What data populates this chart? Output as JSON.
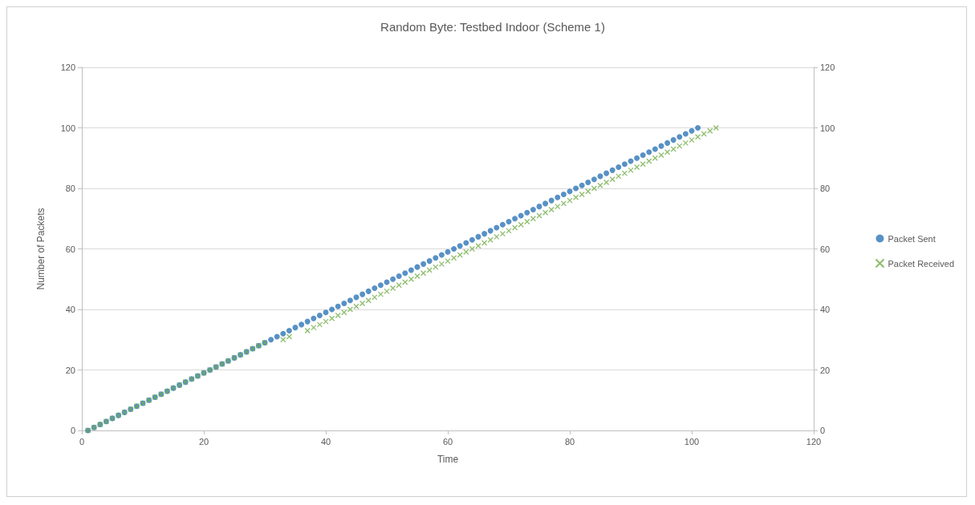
{
  "chart_data": {
    "type": "scatter",
    "title": "Random Byte: Testbed Indoor (Scheme 1)",
    "xlabel": "Time",
    "ylabel": "Number of Packets",
    "xlim": [
      0,
      120
    ],
    "xticks": [
      0,
      20,
      40,
      60,
      80,
      100,
      120
    ],
    "ylim": [
      0,
      120
    ],
    "yticks": [
      0,
      20,
      40,
      60,
      80,
      100,
      120
    ],
    "y2lim": [
      0,
      120
    ],
    "y2ticks": [
      0,
      20,
      40,
      60,
      80,
      100,
      120
    ],
    "grid": "y",
    "legend": "right",
    "series": [
      {
        "name": "Packet Sent",
        "color": "#2e75b6",
        "marker": "circle",
        "x": [
          1,
          2,
          3,
          4,
          5,
          6,
          7,
          8,
          9,
          10,
          11,
          12,
          13,
          14,
          15,
          16,
          17,
          18,
          19,
          20,
          21,
          22,
          23,
          24,
          25,
          26,
          27,
          28,
          29,
          30,
          31,
          32,
          33,
          34,
          35,
          36,
          37,
          38,
          39,
          40,
          41,
          42,
          43,
          44,
          45,
          46,
          47,
          48,
          49,
          50,
          51,
          52,
          53,
          54,
          55,
          56,
          57,
          58,
          59,
          60,
          61,
          62,
          63,
          64,
          65,
          66,
          67,
          68,
          69,
          70,
          71,
          72,
          73,
          74,
          75,
          76,
          77,
          78,
          79,
          80,
          81,
          82,
          83,
          84,
          85,
          86,
          87,
          88,
          89,
          90,
          91,
          92,
          93,
          94,
          95,
          96,
          97,
          98,
          99,
          100,
          101
        ],
        "values": [
          0,
          1,
          2,
          3,
          4,
          5,
          6,
          7,
          8,
          9,
          10,
          11,
          12,
          13,
          14,
          15,
          16,
          17,
          18,
          19,
          20,
          21,
          22,
          23,
          24,
          25,
          26,
          27,
          28,
          29,
          30,
          31,
          32,
          33,
          34,
          35,
          36,
          37,
          38,
          39,
          40,
          41,
          42,
          43,
          44,
          45,
          46,
          47,
          48,
          49,
          50,
          51,
          52,
          53,
          54,
          55,
          56,
          57,
          58,
          59,
          60,
          61,
          62,
          63,
          64,
          65,
          66,
          67,
          68,
          69,
          70,
          71,
          72,
          73,
          74,
          75,
          76,
          77,
          78,
          79,
          80,
          81,
          82,
          83,
          84,
          85,
          86,
          87,
          88,
          89,
          90,
          91,
          92,
          93,
          94,
          95,
          96,
          97,
          98,
          99,
          100
        ]
      },
      {
        "name": "Packet Received",
        "color": "#70ad47",
        "marker": "cross",
        "x": [
          1,
          2,
          3,
          4,
          5,
          6,
          7,
          8,
          9,
          10,
          11,
          12,
          13,
          14,
          15,
          16,
          17,
          18,
          19,
          20,
          21,
          22,
          23,
          24,
          25,
          26,
          27,
          28,
          29,
          30,
          33,
          34,
          37,
          38,
          39,
          40,
          41,
          42,
          43,
          44,
          45,
          46,
          47,
          48,
          49,
          50,
          51,
          52,
          53,
          54,
          55,
          56,
          57,
          58,
          59,
          60,
          61,
          62,
          63,
          64,
          65,
          66,
          67,
          68,
          69,
          70,
          71,
          72,
          73,
          74,
          75,
          76,
          77,
          78,
          79,
          80,
          81,
          82,
          83,
          84,
          85,
          86,
          87,
          88,
          89,
          90,
          91,
          92,
          93,
          94,
          95,
          96,
          97,
          98,
          99,
          100,
          101,
          102,
          103,
          104
        ],
        "values": [
          0,
          1,
          2,
          3,
          4,
          5,
          6,
          7,
          8,
          9,
          10,
          11,
          12,
          13,
          14,
          15,
          16,
          17,
          18,
          19,
          20,
          21,
          22,
          23,
          24,
          25,
          26,
          27,
          28,
          29,
          30,
          31,
          33,
          34,
          35,
          36,
          37,
          38,
          39,
          40,
          41,
          42,
          43,
          44,
          45,
          46,
          47,
          48,
          49,
          50,
          51,
          52,
          53,
          54,
          55,
          56,
          57,
          58,
          59,
          60,
          61,
          62,
          63,
          64,
          65,
          66,
          67,
          68,
          69,
          70,
          71,
          72,
          73,
          74,
          75,
          76,
          77,
          78,
          79,
          80,
          81,
          82,
          83,
          84,
          85,
          86,
          87,
          88,
          89,
          90,
          91,
          92,
          93,
          94,
          95,
          96,
          97,
          98,
          99,
          100
        ]
      }
    ]
  }
}
